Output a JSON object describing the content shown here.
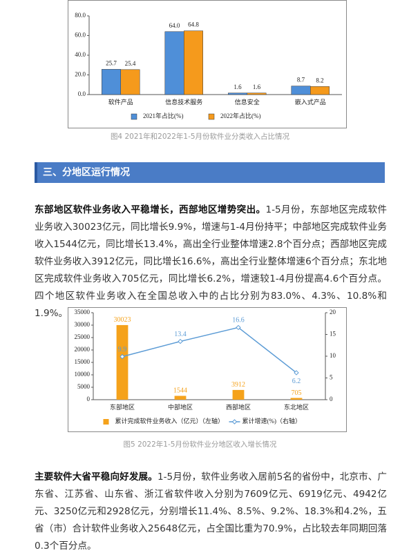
{
  "chart_data": [
    {
      "type": "bar",
      "categories": [
        "软件产品",
        "信息技术服务",
        "信息安全",
        "嵌入式产品"
      ],
      "series": [
        {
          "name": "2021年占比(%)",
          "color": "#4f8fd8",
          "values": [
            25.7,
            64.0,
            1.6,
            8.7
          ],
          "value_labels": [
            "25.7",
            "64.0",
            "1.6",
            "8.7"
          ]
        },
        {
          "name": "2022年占比(%)",
          "color": "#f59a1c",
          "values": [
            25.4,
            64.8,
            1.6,
            8.2
          ],
          "value_labels": [
            "25.4",
            "64.8",
            "1.6",
            "8.2"
          ]
        }
      ],
      "ylim": [
        0,
        80
      ],
      "yticks": [
        {
          "value": 0,
          "label": "0.0"
        },
        {
          "value": 20,
          "label": "20.0"
        },
        {
          "value": 40,
          "label": "40.0"
        },
        {
          "value": 60,
          "label": "60.0"
        },
        {
          "value": 80,
          "label": "80.0"
        }
      ],
      "caption": "图4  2021年和2022年1-5月份软件业分类收入占比情况"
    },
    {
      "type": "combo",
      "categories": [
        "东部地区",
        "中部地区",
        "西部地区",
        "东北地区"
      ],
      "series": [
        {
          "name": "累计完成软件业务收入（亿元）（左轴）",
          "type": "bar",
          "color": "#f5a21b",
          "values": [
            30023,
            1544,
            3912,
            705
          ]
        },
        {
          "name": "累计增速(%)（右轴）",
          "type": "line",
          "axis": "y2",
          "color": "#5b9bd5",
          "values": [
            9.9,
            13.4,
            16.6,
            6.2
          ]
        }
      ],
      "ylim": [
        0,
        35000
      ],
      "yticks": [
        0,
        5000,
        10000,
        15000,
        20000,
        25000,
        30000,
        35000
      ],
      "y2lim": [
        0,
        20
      ],
      "y2ticks": [
        0,
        5,
        10,
        15,
        20
      ],
      "caption": "图5  2022年1-5月份软件业分地区收入增长情况"
    }
  ],
  "section_heading": "三、分地区运行情况",
  "paragraphs": [
    {
      "lead": "东部地区软件业务收入平稳增长，西部地区增势突出。",
      "text": "1-5月份，东部地区完成软件业务收入30023亿元，同比增长9.9%，增速与1-4月份持平；中部地区完成软件业务收入1544亿元，同比增长13.4%，高出全行业整体增速2.8个百分点；西部地区完成软件业务收入3912亿元，同比增长16.6%，高出全行业整体增速6个百分点；东北地区完成软件业务收入705亿元，同比增长6.2%，增速较1-4月份提高4.6个百分点。四个地区软件业务收入在全国总收入中的占比分别为83.0%、4.3%、10.8%和1.9%。"
    },
    {
      "lead": "主要软件大省平稳向好发展。",
      "text": "1-5月份，软件业务收入居前5名的省份中，北京市、广东省、江苏省、山东省、浙江省软件收入分别为7609亿元、6919亿元、4942亿元、3250亿元和2928亿元，分别增长11.4%、8.5%、9.2%、18.3%和4.2%，五省（市）合计软件业务收入25648亿元，占全国比重为70.9%，占比较去年同期回落0.3个百分点。"
    }
  ]
}
